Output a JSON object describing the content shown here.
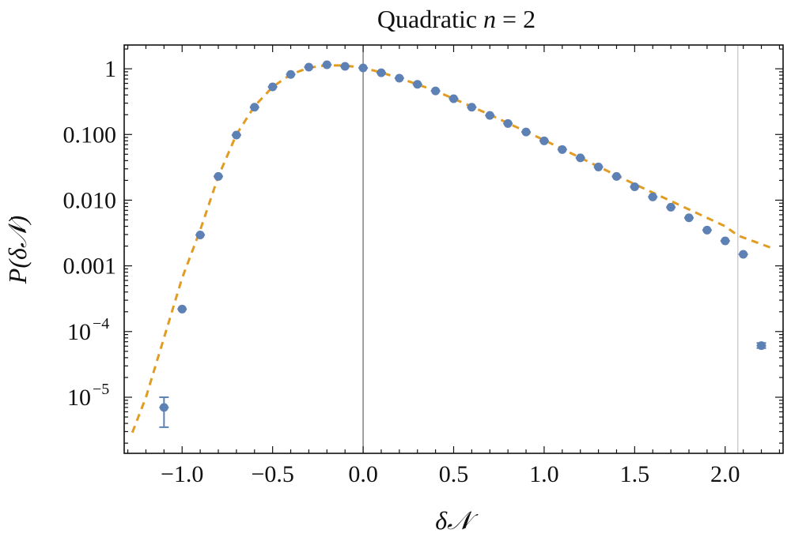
{
  "chart_data": {
    "type": "scatter",
    "title": "Quadratic n = 2",
    "title_parts": {
      "text": "Quadratic ",
      "var": "n",
      "rest": " = 2"
    },
    "xlabel": "δ𝒩",
    "ylabel": "P(δ𝒩)",
    "xlim": [
      -1.32,
      2.32
    ],
    "ylim": [
      1.4e-06,
      2.3
    ],
    "yscale": "log",
    "grid": false,
    "x_ticks": [
      {
        "value": -1.0,
        "label": "−1.0"
      },
      {
        "value": -0.5,
        "label": "−0.5"
      },
      {
        "value": 0.0,
        "label": "0.0"
      },
      {
        "value": 0.5,
        "label": "0.5"
      },
      {
        "value": 1.0,
        "label": "1.0"
      },
      {
        "value": 1.5,
        "label": "1.5"
      },
      {
        "value": 2.0,
        "label": "2.0"
      }
    ],
    "y_ticks": [
      {
        "value": 1,
        "label": "1"
      },
      {
        "value": 0.1,
        "label": "0.100"
      },
      {
        "value": 0.01,
        "label": "0.010"
      },
      {
        "value": 0.001,
        "label": "0.001"
      },
      {
        "value": 0.0001,
        "label": "10",
        "exp": "−4"
      },
      {
        "value": 1e-05,
        "label": "10",
        "exp": "−5"
      }
    ],
    "vertical_lines": [
      {
        "x": 0.0,
        "color": "#6e6e6e"
      },
      {
        "x": 2.07,
        "color": "#c8c8c8"
      }
    ],
    "series": [
      {
        "type": "points",
        "color": "#5e81b5",
        "x": [
          -1.1,
          -1.0,
          -0.9,
          -0.8,
          -0.7,
          -0.6,
          -0.5,
          -0.4,
          -0.3,
          -0.2,
          -0.1,
          0.0,
          0.1,
          0.2,
          0.3,
          0.4,
          0.5,
          0.6,
          0.7,
          0.8,
          0.9,
          1.0,
          1.1,
          1.2,
          1.3,
          1.4,
          1.5,
          1.6,
          1.7,
          1.8,
          1.9,
          2.0,
          2.1,
          2.2
        ],
        "y": [
          7e-06,
          0.00022,
          0.00295,
          0.023,
          0.098,
          0.26,
          0.53,
          0.82,
          1.06,
          1.15,
          1.09,
          1.03,
          0.87,
          0.72,
          0.58,
          0.46,
          0.35,
          0.26,
          0.195,
          0.147,
          0.109,
          0.08,
          0.059,
          0.044,
          0.032,
          0.023,
          0.016,
          0.0112,
          0.0078,
          0.0054,
          0.0035,
          0.0024,
          0.0015,
          6.1e-05
        ],
        "err_low": [
          3.5e-06,
          null,
          null,
          null,
          null,
          null,
          null,
          null,
          null,
          null,
          null,
          null,
          null,
          null,
          null,
          null,
          null,
          null,
          null,
          null,
          null,
          null,
          null,
          null,
          null,
          null,
          null,
          null,
          null,
          null,
          null,
          null,
          null,
          5.6e-05
        ],
        "err_high": [
          1e-05,
          null,
          null,
          null,
          null,
          null,
          null,
          null,
          null,
          null,
          null,
          null,
          null,
          null,
          null,
          null,
          null,
          null,
          null,
          null,
          null,
          null,
          null,
          null,
          null,
          null,
          null,
          null,
          null,
          null,
          null,
          null,
          null,
          6.7e-05
        ]
      },
      {
        "type": "dashed-line",
        "color": "#e19c24",
        "x": [
          -1.275,
          -1.2,
          -1.1,
          -1.0,
          -0.9,
          -0.8,
          -0.7,
          -0.6,
          -0.5,
          -0.4,
          -0.3,
          -0.2,
          -0.1,
          0.0,
          0.1,
          0.2,
          0.3,
          0.4,
          0.5,
          0.7,
          1.0,
          1.5,
          2.0,
          2.07,
          2.25
        ],
        "y": [
          2.9e-06,
          1e-05,
          8e-05,
          0.00065,
          0.0035,
          0.023,
          0.1,
          0.27,
          0.53,
          0.82,
          1.04,
          1.13,
          1.12,
          1.03,
          0.88,
          0.72,
          0.58,
          0.46,
          0.35,
          0.2,
          0.082,
          0.0175,
          0.004,
          0.0029,
          0.0019
        ]
      }
    ]
  }
}
